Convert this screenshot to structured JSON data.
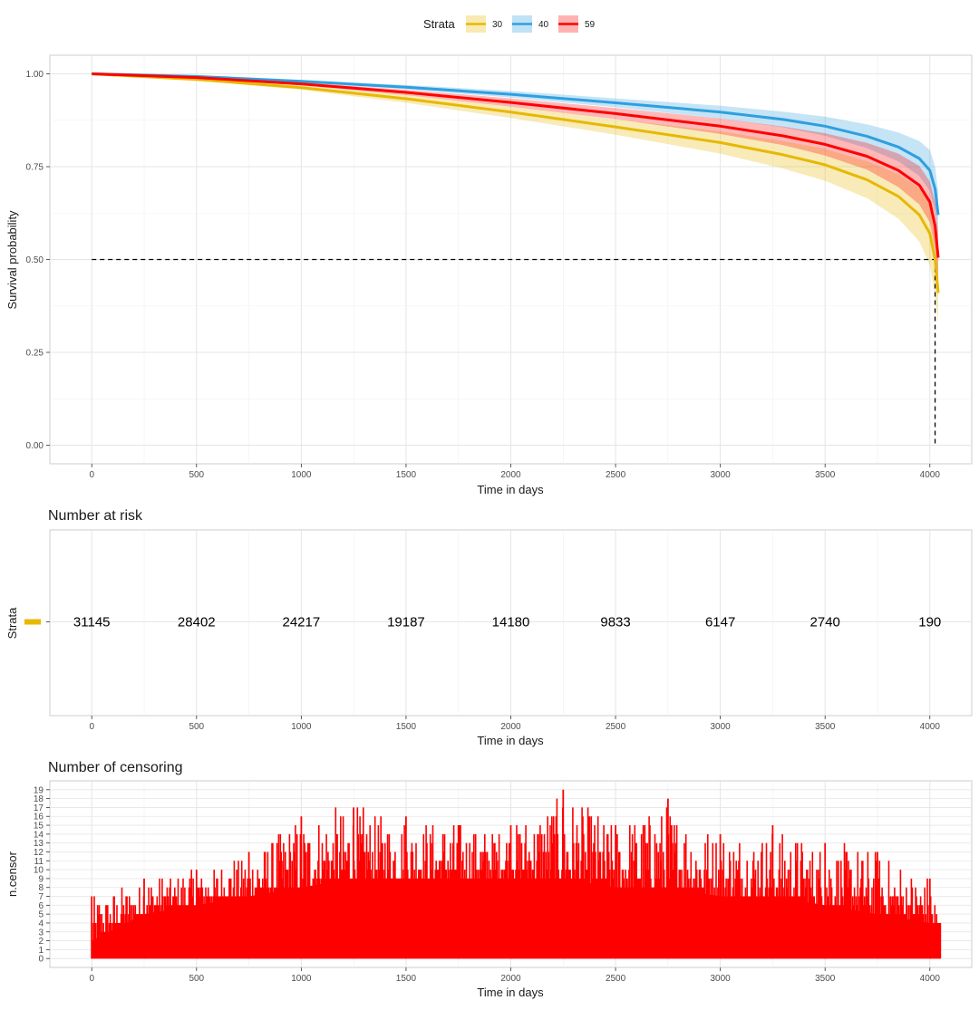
{
  "chart_data": [
    {
      "type": "line",
      "ylabel": "Survival probability",
      "xlabel": "Time in days",
      "xlim": [
        -200,
        4200
      ],
      "ylim": [
        -0.05,
        1.05
      ],
      "x_ticks": [
        0,
        500,
        1000,
        1500,
        2000,
        2500,
        3000,
        3500,
        4000
      ],
      "y_ticks": [
        0.0,
        0.25,
        0.5,
        0.75,
        1.0
      ],
      "y_tick_labels": [
        "0.00",
        "0.25",
        "0.50",
        "0.75",
        "1.00"
      ],
      "legend": {
        "title": "Strata",
        "placement": "top"
      },
      "median_line": {
        "y": 0.5,
        "x": 4025
      },
      "series": [
        {
          "name": "30",
          "color": "#E7B800",
          "x": [
            0,
            500,
            1000,
            1500,
            2000,
            2500,
            3000,
            3300,
            3500,
            3700,
            3850,
            3950,
            4000,
            4025,
            4040
          ],
          "y": [
            1.0,
            0.985,
            0.963,
            0.933,
            0.897,
            0.857,
            0.815,
            0.782,
            0.755,
            0.715,
            0.67,
            0.62,
            0.57,
            0.5,
            0.41
          ],
          "lower": [
            1.0,
            0.982,
            0.957,
            0.922,
            0.881,
            0.836,
            0.785,
            0.745,
            0.712,
            0.665,
            0.61,
            0.548,
            0.485,
            0.4,
            0.33
          ],
          "upper": [
            1.0,
            0.988,
            0.969,
            0.944,
            0.913,
            0.878,
            0.845,
            0.819,
            0.798,
            0.765,
            0.73,
            0.692,
            0.655,
            0.6,
            0.5
          ]
        },
        {
          "name": "40",
          "color": "#2E9FDF",
          "x": [
            0,
            500,
            1000,
            1500,
            2000,
            2500,
            3000,
            3300,
            3500,
            3700,
            3850,
            3950,
            4000,
            4025,
            4040
          ],
          "y": [
            1.0,
            0.993,
            0.98,
            0.964,
            0.945,
            0.922,
            0.897,
            0.877,
            0.859,
            0.832,
            0.803,
            0.772,
            0.74,
            0.69,
            0.62
          ],
          "lower": [
            1.0,
            0.991,
            0.977,
            0.958,
            0.936,
            0.91,
            0.88,
            0.856,
            0.833,
            0.8,
            0.764,
            0.725,
            0.685,
            0.63,
            0.56
          ],
          "upper": [
            1.0,
            0.995,
            0.983,
            0.97,
            0.954,
            0.934,
            0.914,
            0.898,
            0.885,
            0.864,
            0.842,
            0.819,
            0.795,
            0.75,
            0.68
          ]
        },
        {
          "name": "59",
          "color": "#FF0000",
          "x": [
            0,
            500,
            1000,
            1500,
            2000,
            2500,
            3000,
            3300,
            3500,
            3700,
            3850,
            3950,
            4000,
            4025,
            4040
          ],
          "y": [
            1.0,
            0.99,
            0.973,
            0.95,
            0.923,
            0.893,
            0.859,
            0.833,
            0.81,
            0.778,
            0.74,
            0.7,
            0.655,
            0.59,
            0.505
          ],
          "lower": [
            1.0,
            0.988,
            0.969,
            0.943,
            0.912,
            0.878,
            0.838,
            0.808,
            0.78,
            0.742,
            0.695,
            0.648,
            0.6,
            0.525,
            0.44
          ],
          "upper": [
            1.0,
            0.992,
            0.977,
            0.957,
            0.934,
            0.908,
            0.88,
            0.858,
            0.84,
            0.814,
            0.785,
            0.752,
            0.71,
            0.655,
            0.57
          ]
        }
      ]
    },
    {
      "type": "table",
      "title": "Number at risk",
      "xlabel": "Time in days",
      "ylabel": "Strata",
      "x_ticks": [
        0,
        500,
        1000,
        1500,
        2000,
        2500,
        3000,
        3500,
        4000
      ],
      "strata_color": "#E7B800",
      "x": [
        0,
        500,
        1000,
        1500,
        2000,
        2500,
        3000,
        3500,
        4000
      ],
      "values": [
        31145,
        28402,
        24217,
        19187,
        14180,
        9833,
        6147,
        2740,
        190
      ],
      "labels": [
        "31145",
        "28402",
        "24217",
        "19187",
        "14180",
        "9833",
        "6147",
        "2740",
        "190"
      ]
    },
    {
      "type": "bar",
      "title": "Number of censoring",
      "xlabel": "Time in days",
      "ylabel": "n.censor",
      "color": "#FF0000",
      "x_ticks": [
        0,
        500,
        1000,
        1500,
        2000,
        2500,
        3000,
        3500,
        4000
      ],
      "y_ticks": [
        0,
        1,
        2,
        3,
        4,
        5,
        6,
        7,
        8,
        9,
        10,
        11,
        12,
        13,
        14,
        15,
        16,
        17,
        18,
        19
      ],
      "xlim": [
        -200,
        4200
      ],
      "ylim": [
        -1,
        20
      ],
      "x": [
        0,
        250,
        500,
        750,
        1000,
        1250,
        1500,
        1750,
        2000,
        2250,
        2500,
        2750,
        3000,
        3250,
        3500,
        3750,
        4000,
        4050
      ],
      "baseline": [
        2,
        5,
        6,
        7,
        8,
        9,
        9,
        9,
        9,
        9,
        8,
        8,
        7,
        7,
        6,
        5,
        4,
        3
      ],
      "peak": [
        7,
        9,
        10,
        12,
        16,
        17,
        16,
        15,
        15,
        19,
        15,
        18,
        14,
        15,
        13,
        12,
        9,
        4
      ]
    }
  ]
}
